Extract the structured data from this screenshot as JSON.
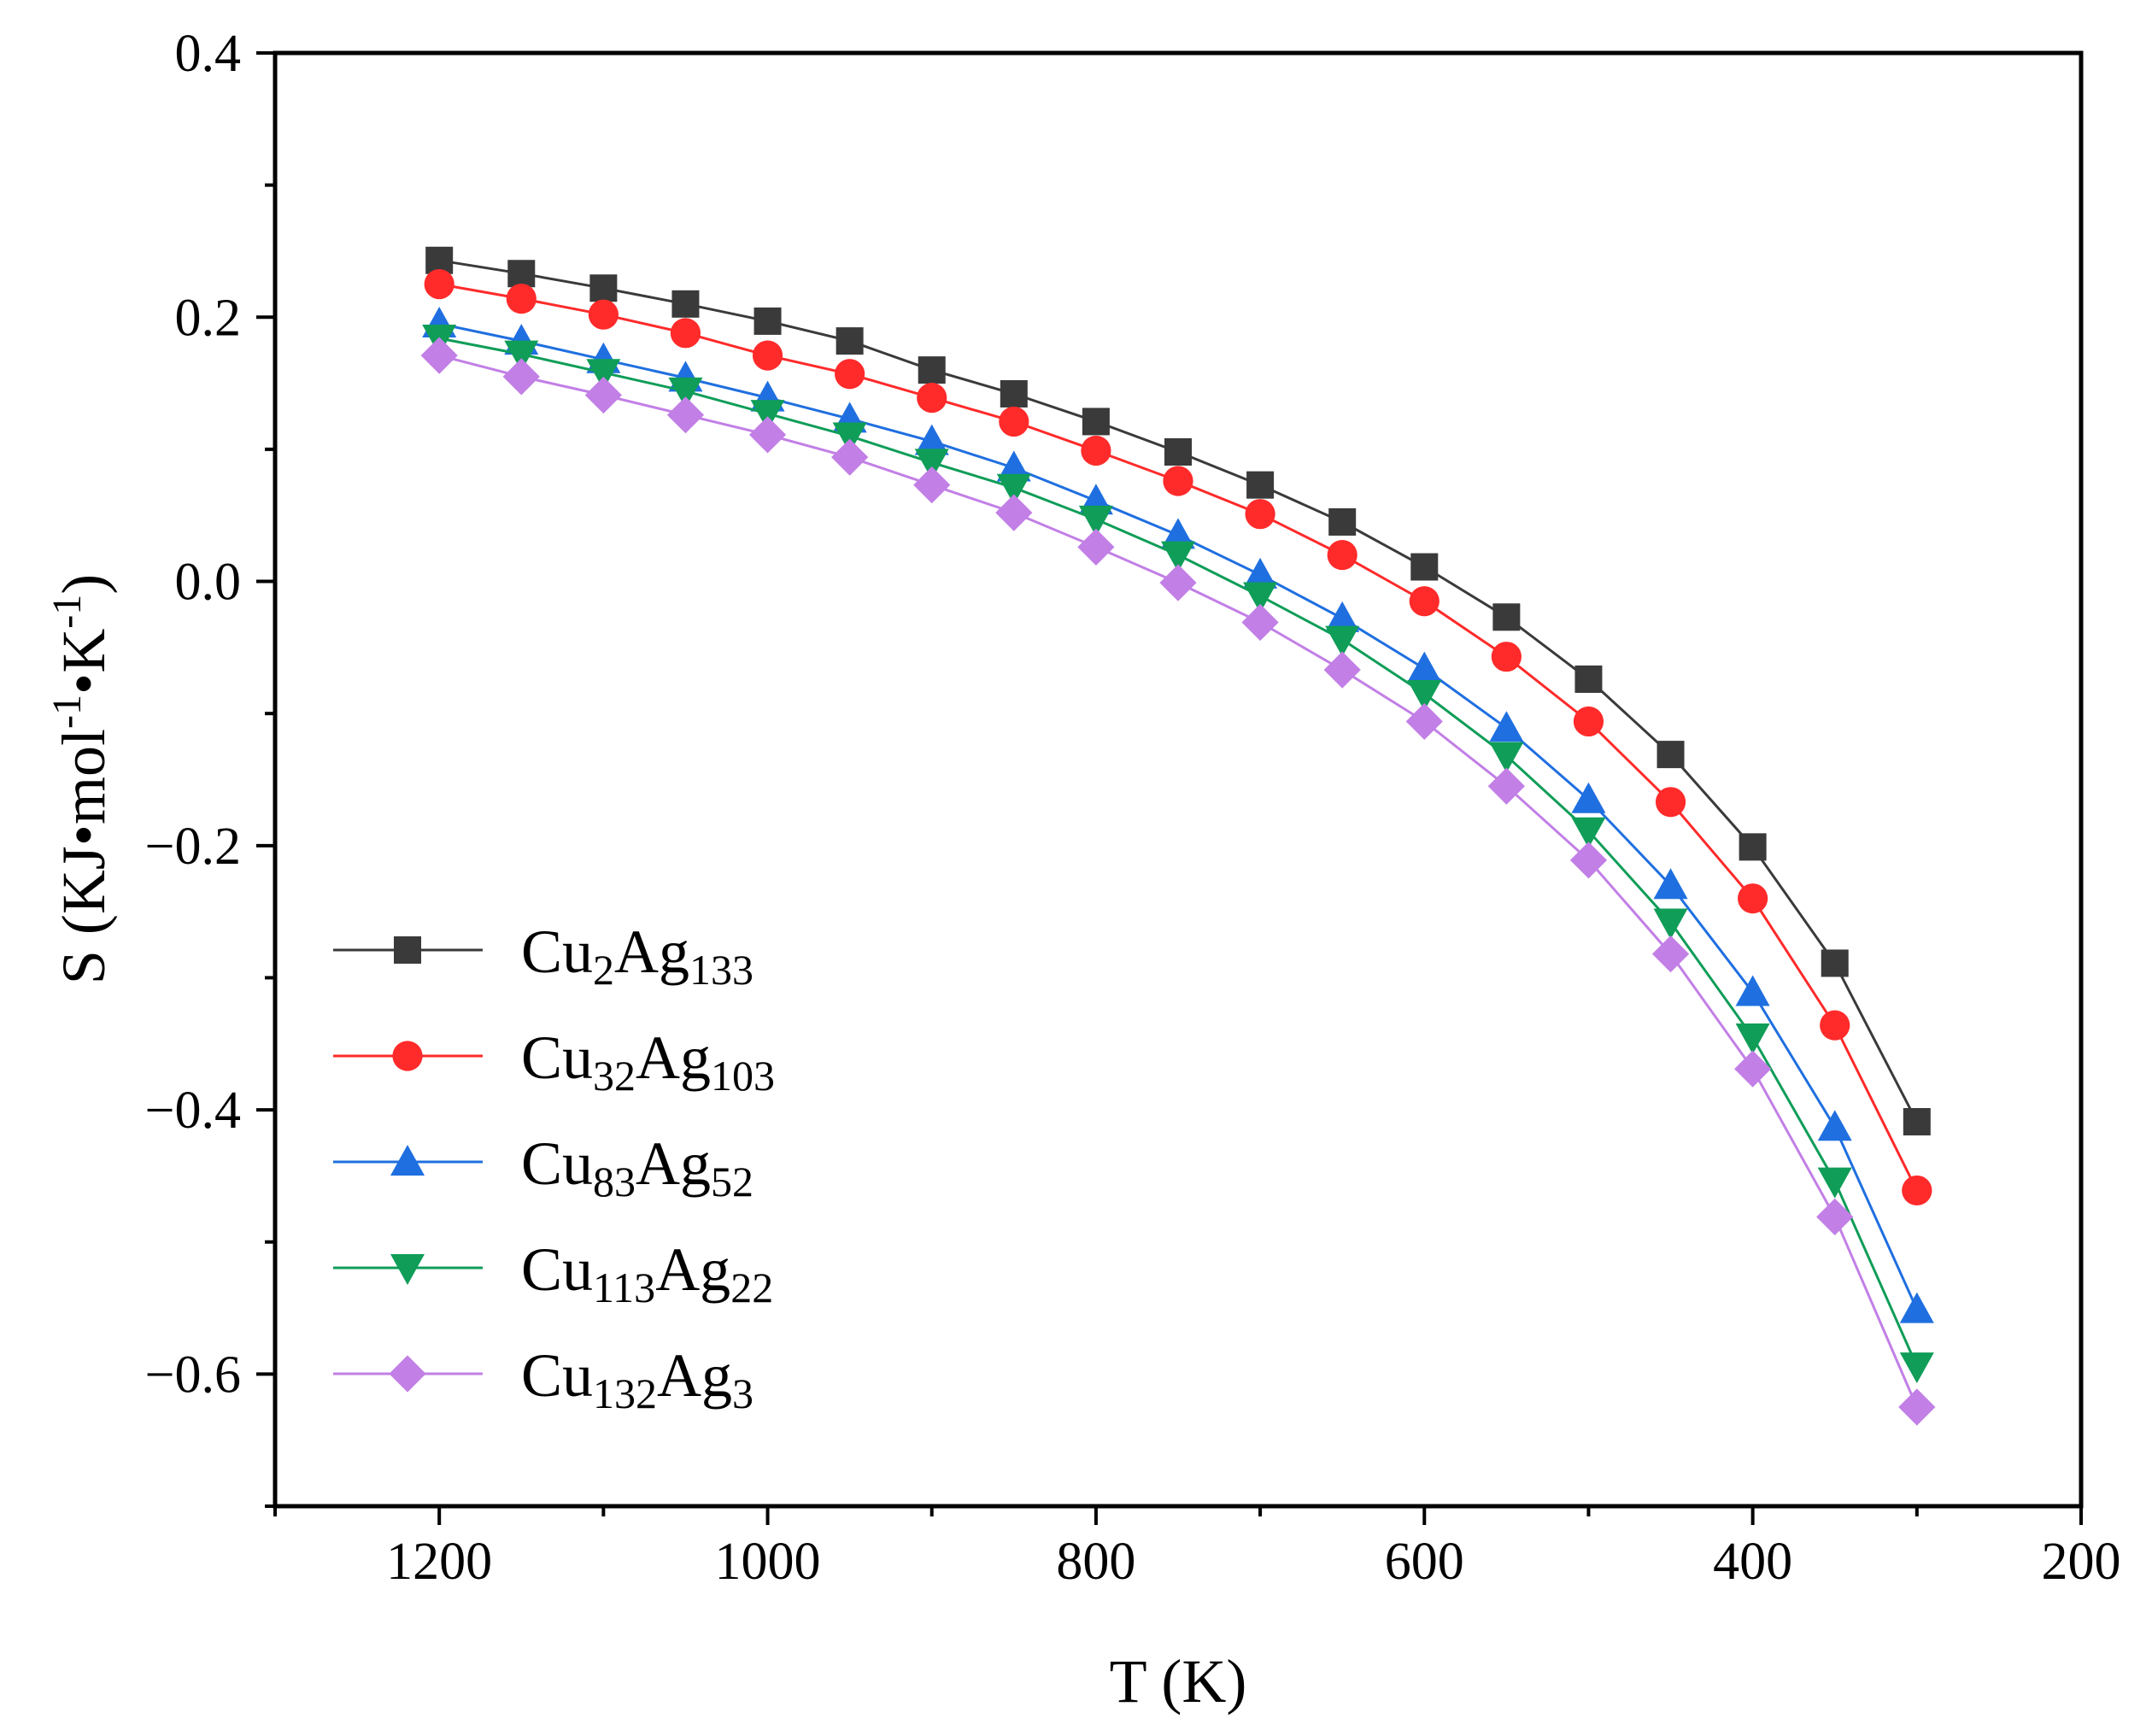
{
  "chart_data": {
    "type": "line",
    "title": "",
    "xlabel": "T (K)",
    "ylabel": {
      "parts": [
        {
          "t": "S (KJ•mol",
          "sup": false
        },
        {
          "t": "-1",
          "sup": true
        },
        {
          "t": "•K",
          "sup": false
        },
        {
          "t": "-1",
          "sup": true
        },
        {
          "t": ")",
          "sup": false
        }
      ]
    },
    "xlim": [
      1300,
      200
    ],
    "ylim": [
      -0.7,
      0.4
    ],
    "xticks": [
      1200,
      1000,
      800,
      600,
      400,
      200
    ],
    "xtick_labels": [
      "1200",
      "1000",
      "800",
      "600",
      "400",
      "200"
    ],
    "yticks": [
      0.4,
      0.2,
      0.0,
      -0.2,
      -0.4,
      -0.6
    ],
    "ytick_labels": [
      "0.4",
      "0.2",
      "0.0",
      "−0.2",
      "−0.4",
      "−0.6"
    ],
    "grid": false,
    "legend_position": "bottom-left",
    "x": [
      1200,
      1150,
      1100,
      1050,
      1000,
      950,
      900,
      850,
      800,
      750,
      700,
      650,
      600,
      550,
      500,
      450,
      400,
      350,
      300
    ],
    "series": [
      {
        "name": "Cu2Ag133",
        "label_parts": [
          {
            "t": "Cu",
            "sub": false
          },
          {
            "t": "2",
            "sub": true
          },
          {
            "t": "Ag",
            "sub": false
          },
          {
            "t": "133",
            "sub": true
          }
        ],
        "color": "#3a3a3a",
        "marker": "square",
        "values": [
          0.243,
          0.233,
          0.222,
          0.21,
          0.197,
          0.182,
          0.16,
          0.142,
          0.121,
          0.098,
          0.073,
          0.045,
          0.011,
          -0.027,
          -0.074,
          -0.131,
          -0.201,
          -0.289,
          -0.409
        ]
      },
      {
        "name": "Cu32Ag103",
        "label_parts": [
          {
            "t": "Cu",
            "sub": false
          },
          {
            "t": "32",
            "sub": true
          },
          {
            "t": "Ag",
            "sub": false
          },
          {
            "t": "103",
            "sub": true
          }
        ],
        "color": "#ff2a2a",
        "marker": "circle",
        "values": [
          0.225,
          0.214,
          0.202,
          0.188,
          0.171,
          0.157,
          0.139,
          0.121,
          0.099,
          0.076,
          0.051,
          0.02,
          -0.015,
          -0.057,
          -0.106,
          -0.167,
          -0.24,
          -0.336,
          -0.461
        ]
      },
      {
        "name": "Cu83Ag52",
        "label_parts": [
          {
            "t": "Cu",
            "sub": false
          },
          {
            "t": "83",
            "sub": true
          },
          {
            "t": "Ag",
            "sub": false
          },
          {
            "t": "52",
            "sub": true
          }
        ],
        "color": "#1f6fe0",
        "marker": "triangle-up",
        "values": [
          0.195,
          0.182,
          0.168,
          0.154,
          0.139,
          0.123,
          0.106,
          0.086,
          0.061,
          0.035,
          0.005,
          -0.028,
          -0.066,
          -0.111,
          -0.165,
          -0.23,
          -0.311,
          -0.413,
          -0.551
        ]
      },
      {
        "name": "Cu113Ag22",
        "label_parts": [
          {
            "t": "Cu",
            "sub": false
          },
          {
            "t": "113",
            "sub": true
          },
          {
            "t": "Ag",
            "sub": false
          },
          {
            "t": "22",
            "sub": true
          }
        ],
        "color": "#0f9d58",
        "marker": "triangle-down",
        "values": [
          0.184,
          0.172,
          0.158,
          0.144,
          0.127,
          0.11,
          0.09,
          0.071,
          0.047,
          0.02,
          -0.011,
          -0.044,
          -0.085,
          -0.132,
          -0.189,
          -0.258,
          -0.345,
          -0.454,
          -0.594
        ]
      },
      {
        "name": "Cu132Ag3",
        "label_parts": [
          {
            "t": "Cu",
            "sub": false
          },
          {
            "t": "132",
            "sub": true
          },
          {
            "t": "Ag",
            "sub": false
          },
          {
            "t": "3",
            "sub": true
          }
        ],
        "color": "#c27fe6",
        "marker": "diamond",
        "values": [
          0.171,
          0.155,
          0.141,
          0.126,
          0.111,
          0.094,
          0.073,
          0.052,
          0.026,
          -0.001,
          -0.031,
          -0.067,
          -0.106,
          -0.155,
          -0.211,
          -0.282,
          -0.369,
          -0.481,
          -0.625
        ]
      }
    ]
  }
}
